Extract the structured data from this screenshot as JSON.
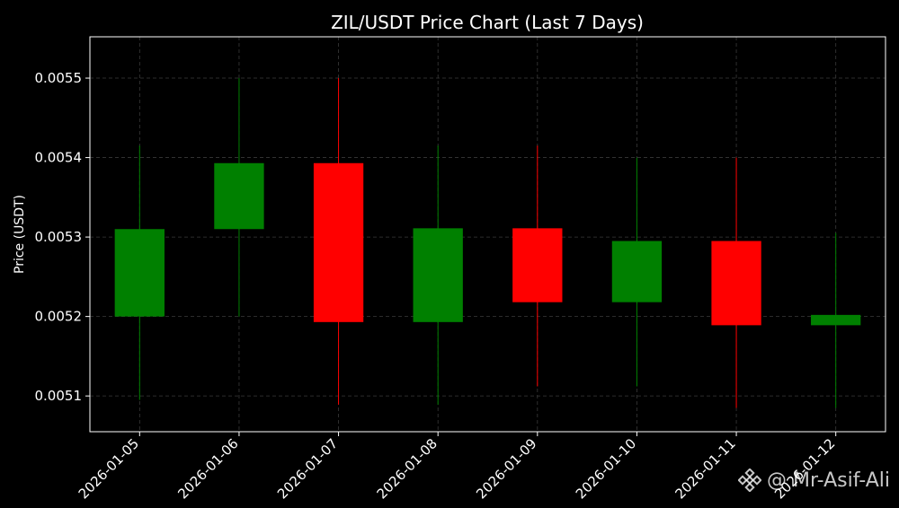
{
  "chart_data": {
    "type": "candlestick",
    "title": "ZIL/USDT Price Chart (Last 7 Days)",
    "xlabel": "",
    "ylabel": "Price (USDT)",
    "categories": [
      "2026-01-05",
      "2026-01-06",
      "2026-01-07",
      "2026-01-08",
      "2026-01-09",
      "2026-01-10",
      "2026-01-11",
      "2026-01-12"
    ],
    "candles": [
      {
        "date": "2026-01-05",
        "open": 0.0052,
        "high": 0.005415,
        "low": 0.005095,
        "close": 0.00531
      },
      {
        "date": "2026-01-06",
        "open": 0.00531,
        "high": 0.0055,
        "low": 0.0052,
        "close": 0.005393
      },
      {
        "date": "2026-01-07",
        "open": 0.005393,
        "high": 0.0055,
        "low": 0.005089,
        "close": 0.005193
      },
      {
        "date": "2026-01-08",
        "open": 0.005193,
        "high": 0.005415,
        "low": 0.005089,
        "close": 0.005311
      },
      {
        "date": "2026-01-09",
        "open": 0.005311,
        "high": 0.005415,
        "low": 0.005112,
        "close": 0.005218
      },
      {
        "date": "2026-01-10",
        "open": 0.005218,
        "high": 0.0054,
        "low": 0.005112,
        "close": 0.005295
      },
      {
        "date": "2026-01-11",
        "open": 0.005295,
        "high": 0.0054,
        "low": 0.005085,
        "close": 0.005189
      },
      {
        "date": "2026-01-12",
        "open": 0.005189,
        "high": 0.005305,
        "low": 0.005085,
        "close": 0.005202
      }
    ],
    "y_ticks": [
      "0.0051",
      "0.0052",
      "0.0053",
      "0.0054",
      "0.0055"
    ],
    "ylim": [
      0.005055,
      0.005552
    ],
    "grid": true,
    "colors": {
      "up": "#008000",
      "down": "#ff0000",
      "background": "#000000",
      "text": "#ffffff",
      "grid": "#3a3a3a"
    }
  },
  "watermark": {
    "text": "@ Mr-Asif-Ali",
    "icon": "binance-logo-icon"
  }
}
